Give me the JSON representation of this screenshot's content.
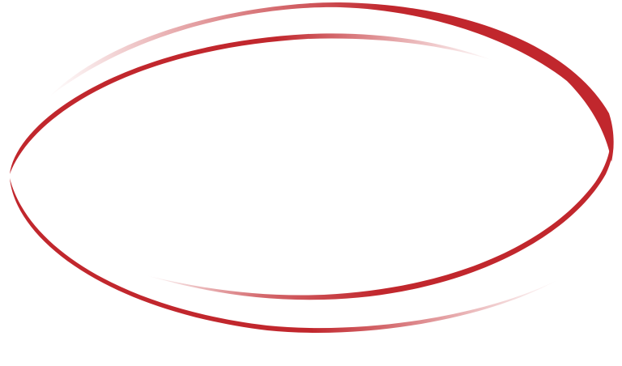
{
  "graphic": {
    "name": "double-swoosh-ellipse",
    "stroke_color": "#C1272D",
    "background_color": "#FFFFFF"
  }
}
